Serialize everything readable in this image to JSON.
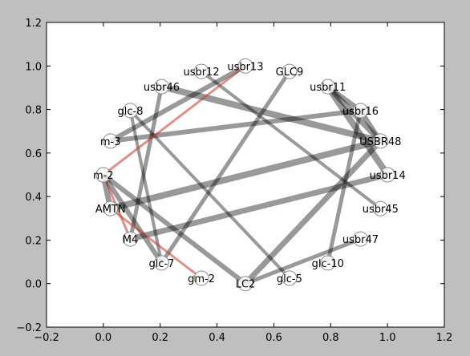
{
  "chart_data": {
    "type": "network",
    "xlim": [
      -0.2,
      1.2
    ],
    "ylim": [
      -0.2,
      1.2
    ],
    "xticks": [
      "−0.2",
      "0.0",
      "0.2",
      "0.4",
      "0.6",
      "0.8",
      "1.0",
      "1.2"
    ],
    "yticks": [
      "−0.2",
      "0.0",
      "0.2",
      "0.4",
      "0.6",
      "0.8",
      "1.0",
      "1.2"
    ],
    "xtick_values": [
      -0.2,
      0.0,
      0.2,
      0.4,
      0.6,
      0.8,
      1.0,
      1.2
    ],
    "ytick_values": [
      -0.2,
      0.0,
      0.2,
      0.4,
      0.6,
      0.8,
      1.0,
      1.2
    ],
    "plot_background": "#ffffff",
    "figure_background": "#bfbfbf",
    "edge_color": "#000000",
    "highlight_edge_color": "#c0392b",
    "nodes": [
      {
        "id": "usbr13",
        "label": "usbr13",
        "x": 0.5,
        "y": 1.0
      },
      {
        "id": "GLC9",
        "label": "GLC9",
        "x": 0.655,
        "y": 0.975
      },
      {
        "id": "usbr11",
        "label": "usbr11",
        "x": 0.79,
        "y": 0.905
      },
      {
        "id": "usbr16",
        "label": "usbr16",
        "x": 0.905,
        "y": 0.795
      },
      {
        "id": "USBR48",
        "label": "USBR48",
        "x": 0.975,
        "y": 0.655
      },
      {
        "id": "usbr14",
        "label": "usbr14",
        "x": 1.0,
        "y": 0.5
      },
      {
        "id": "usbr45",
        "label": "usbr45",
        "x": 0.975,
        "y": 0.345
      },
      {
        "id": "usbr47",
        "label": "usbr47",
        "x": 0.905,
        "y": 0.205
      },
      {
        "id": "glc-10",
        "label": "glc-10",
        "x": 0.79,
        "y": 0.095
      },
      {
        "id": "glc-5",
        "label": "glc-5",
        "x": 0.655,
        "y": 0.025
      },
      {
        "id": "LC2",
        "label": "LC2",
        "x": 0.5,
        "y": 0.0
      },
      {
        "id": "gm-2",
        "label": "gm-2",
        "x": 0.345,
        "y": 0.025
      },
      {
        "id": "glc-7",
        "label": "glc-7",
        "x": 0.205,
        "y": 0.095
      },
      {
        "id": "M4",
        "label": "M4",
        "x": 0.095,
        "y": 0.205
      },
      {
        "id": "AMTN",
        "label": "AMTN",
        "x": 0.025,
        "y": 0.345
      },
      {
        "id": "m-2",
        "label": "m-2",
        "x": 0.0,
        "y": 0.5
      },
      {
        "id": "m-3",
        "label": "m-3",
        "x": 0.025,
        "y": 0.655
      },
      {
        "id": "glc-8",
        "label": "glc-8",
        "x": 0.095,
        "y": 0.795
      },
      {
        "id": "usbr46",
        "label": "usbr46",
        "x": 0.205,
        "y": 0.905
      },
      {
        "id": "usbr12",
        "label": "usbr12",
        "x": 0.345,
        "y": 0.975
      }
    ],
    "edges": [
      {
        "source": "usbr46",
        "target": "USBR48",
        "weight": 8,
        "color": "gray"
      },
      {
        "source": "usbr11",
        "target": "usbr14",
        "weight": 8,
        "color": "gray"
      },
      {
        "source": "usbr11",
        "target": "USBR48",
        "weight": 7,
        "color": "gray"
      },
      {
        "source": "usbr11",
        "target": "usbr16",
        "weight": 6,
        "color": "gray"
      },
      {
        "source": "usbr16",
        "target": "USBR48",
        "weight": 6,
        "color": "gray"
      },
      {
        "source": "AMTN",
        "target": "USBR48",
        "weight": 8,
        "color": "gray"
      },
      {
        "source": "M4",
        "target": "usbr14",
        "weight": 7,
        "color": "gray"
      },
      {
        "source": "m-3",
        "target": "usbr16",
        "weight": 6,
        "color": "gray"
      },
      {
        "source": "usbr12",
        "target": "usbr45",
        "weight": 4,
        "color": "gray"
      },
      {
        "source": "usbr46",
        "target": "M4",
        "weight": 5,
        "color": "gray"
      },
      {
        "source": "GLC9",
        "target": "glc-7",
        "weight": 5,
        "color": "gray"
      },
      {
        "source": "usbr16",
        "target": "glc-10",
        "weight": 5,
        "color": "gray"
      },
      {
        "source": "USBR48",
        "target": "LC2",
        "weight": 7,
        "color": "gray"
      },
      {
        "source": "usbr47",
        "target": "LC2",
        "weight": 5,
        "color": "gray"
      },
      {
        "source": "glc-8",
        "target": "glc-5",
        "weight": 4,
        "color": "gray"
      },
      {
        "source": "glc-8",
        "target": "glc-7",
        "weight": 4,
        "color": "gray"
      },
      {
        "source": "m-2",
        "target": "glc-7",
        "weight": 6,
        "color": "gray"
      },
      {
        "source": "m-2",
        "target": "AMTN",
        "weight": 7,
        "color": "gray"
      },
      {
        "source": "m-2",
        "target": "LC2",
        "weight": 6,
        "color": "gray"
      },
      {
        "source": "usbr13",
        "target": "m-3",
        "weight": 6,
        "color": "gray"
      },
      {
        "source": "usbr13",
        "target": "m-2",
        "weight": 3,
        "color": "red"
      },
      {
        "source": "m-2",
        "target": "M4",
        "weight": 3,
        "color": "red"
      },
      {
        "source": "AMTN",
        "target": "gm-2",
        "weight": 3,
        "color": "red"
      }
    ]
  }
}
